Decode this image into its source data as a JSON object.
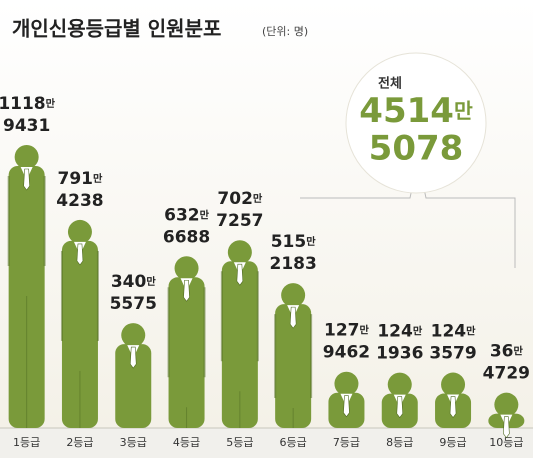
{
  "chart_data": {
    "type": "bar",
    "title": "개인신용등급별 인원분포",
    "unit": "(단위: 명)",
    "categories": [
      "1등급",
      "2등급",
      "3등급",
      "4등급",
      "5등급",
      "6등급",
      "7등급",
      "8등급",
      "9등급",
      "10등급"
    ],
    "values": [
      11189431,
      7914238,
      3405575,
      6326688,
      7027257,
      5152183,
      1279462,
      1241936,
      1243579,
      364729
    ],
    "value_labels": [
      [
        "1118만",
        "9431"
      ],
      [
        "791만",
        "4238"
      ],
      [
        "340만",
        "5575"
      ],
      [
        "632만",
        "6688"
      ],
      [
        "702만",
        "7257"
      ],
      [
        "515만",
        "2183"
      ],
      [
        "127만",
        "9462"
      ],
      [
        "124만",
        "1936"
      ],
      [
        "124만",
        "3579"
      ],
      [
        "36만",
        "4729"
      ]
    ],
    "color": "#7a9a3a",
    "total": {
      "label": "전체",
      "value": 45145078,
      "value_label": [
        "4514만",
        "5078"
      ]
    }
  }
}
